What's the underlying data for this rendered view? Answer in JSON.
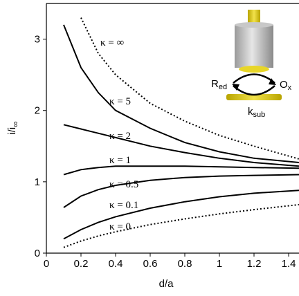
{
  "chart_data": {
    "type": "line",
    "x_label": "d/a",
    "y_label": "i/i",
    "y_label_sub": "∞",
    "x": [
      0.1,
      0.2,
      0.3,
      0.4,
      0.6,
      0.8,
      1.0,
      1.2,
      1.46
    ],
    "series": [
      {
        "name": "κ = ∞",
        "color": "#000000",
        "dash": "dotted",
        "values": [
          null,
          3.3,
          2.8,
          2.5,
          2.1,
          1.85,
          1.65,
          1.5,
          1.32
        ]
      },
      {
        "name": "κ = 5",
        "color": "#000000",
        "dash": "solid",
        "values": [
          3.2,
          2.6,
          2.25,
          2.0,
          1.75,
          1.55,
          1.42,
          1.33,
          1.27
        ]
      },
      {
        "name": "κ = 2",
        "color": "#000000",
        "dash": "solid",
        "values": [
          1.8,
          1.74,
          1.68,
          1.62,
          1.5,
          1.41,
          1.33,
          1.27,
          1.22
        ]
      },
      {
        "name": "κ = 1",
        "color": "#000000",
        "dash": "solid",
        "values": [
          1.1,
          1.17,
          1.2,
          1.22,
          1.22,
          1.22,
          1.21,
          1.2,
          1.19
        ]
      },
      {
        "name": "κ = 0.5",
        "color": "#000000",
        "dash": "solid",
        "values": [
          0.64,
          0.8,
          0.89,
          0.95,
          1.02,
          1.06,
          1.08,
          1.09,
          1.1
        ]
      },
      {
        "name": "κ = 0.1",
        "color": "#000000",
        "dash": "solid",
        "values": [
          0.2,
          0.33,
          0.43,
          0.51,
          0.63,
          0.72,
          0.79,
          0.84,
          0.88
        ]
      },
      {
        "name": "κ = 0",
        "color": "#000000",
        "dash": "dotted",
        "values": [
          0.08,
          0.17,
          0.24,
          0.3,
          0.4,
          0.48,
          0.55,
          0.61,
          0.68
        ]
      }
    ],
    "xlim": [
      0,
      1.46
    ],
    "ylim": [
      0,
      3.5
    ],
    "xticks": [
      0,
      0.2,
      0.4,
      0.6,
      0.8,
      1,
      1.2,
      1.4
    ],
    "yticks": [
      0,
      1,
      2,
      3
    ],
    "inset": [
      {
        "text": "R",
        "sub": "ed"
      },
      {
        "text": "O",
        "sub": "x"
      },
      {
        "text": "k",
        "sub": "sub"
      }
    ]
  }
}
